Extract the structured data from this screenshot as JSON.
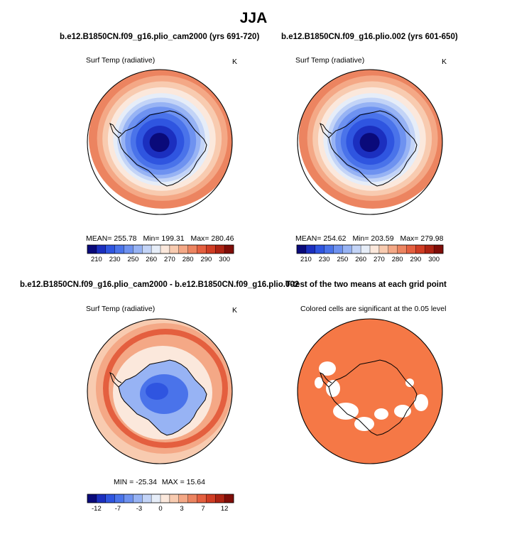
{
  "title": "JJA",
  "panels": [
    {
      "title": "b.e12.B1850CN.f09_g16.plio_cam2000 (yrs 691-720)",
      "variable": "Surf Temp (radiative)",
      "units": "K",
      "stats": {
        "mean_label": "MEAN=",
        "mean": "255.78",
        "min_label": "Min=",
        "min": "199.31",
        "max_label": "Max=",
        "max": "280.46"
      }
    },
    {
      "title": "b.e12.B1850CN.f09_g16.plio.002 (yrs 601-650)",
      "variable": "Surf Temp (radiative)",
      "units": "K",
      "stats": {
        "mean_label": "MEAN=",
        "mean": "254.62",
        "min_label": "Min=",
        "min": "203.59",
        "max_label": "Max=",
        "max": "279.98"
      }
    },
    {
      "title": "b.e12.B1850CN.f09_g16.plio_cam2000 - b.e12.B1850CN.f09_g16.plio.002",
      "variable": "Surf Temp (radiative)",
      "units": "K",
      "stats": {
        "min_label": "MIN =",
        "min": "-25.34",
        "max_label": "MAX =",
        "max": "15.64"
      }
    },
    {
      "title": "T-test of the two means at each grid point",
      "subtitle": "Colored cells are significant at the 0.05 level"
    }
  ],
  "colorbars": {
    "abs_labels": [
      "210",
      "230",
      "250",
      "260",
      "270",
      "280",
      "290",
      "300"
    ],
    "diff_labels": [
      "-12",
      "-7",
      "-3",
      "0",
      "3",
      "7",
      "12"
    ],
    "colors": [
      "#0a0a7a",
      "#1b2fbf",
      "#2f55e0",
      "#4a73ea",
      "#6e92f0",
      "#97b3f4",
      "#c3d4f7",
      "#e6edf8",
      "#fbe8dc",
      "#f8cbb0",
      "#f4a886",
      "#ec8460",
      "#e45f3f",
      "#d03d24",
      "#ad2313",
      "#7f0d08"
    ],
    "diff_colors": [
      "#0a0a7a",
      "#1b2fbf",
      "#2f55e0",
      "#4a73ea",
      "#6e92f0",
      "#97b3f4",
      "#c3d4f7",
      "#e6edf8",
      "#fbe8dc",
      "#f8cbb0",
      "#f4a886",
      "#ec8460",
      "#e45f3f",
      "#d03d24",
      "#ad2313",
      "#7f0d08"
    ],
    "significance_color": "#f57846"
  },
  "chart_data": [
    {
      "type": "heatmap",
      "title": "b.e12.B1850CN.f09_g16.plio_cam2000 (yrs 691-720)",
      "variable": "Surf Temp (radiative)",
      "units": "K",
      "mean": 255.78,
      "min": 199.31,
      "max": 280.46,
      "levels": [
        210,
        230,
        250,
        260,
        270,
        280,
        290,
        300
      ]
    },
    {
      "type": "heatmap",
      "title": "b.e12.B1850CN.f09_g16.plio.002 (yrs 601-650)",
      "variable": "Surf Temp (radiative)",
      "units": "K",
      "mean": 254.62,
      "min": 203.59,
      "max": 279.98,
      "levels": [
        210,
        230,
        250,
        260,
        270,
        280,
        290,
        300
      ]
    },
    {
      "type": "heatmap",
      "title": "b.e12.B1850CN.f09_g16.plio_cam2000 - b.e12.B1850CN.f09_g16.plio.002",
      "variable": "Surf Temp (radiative)",
      "units": "K",
      "min": -25.34,
      "max": 15.64,
      "levels": [
        -12,
        -7,
        -3,
        0,
        3,
        7,
        12
      ]
    },
    {
      "type": "heatmap",
      "title": "T-test of the two means at each grid point",
      "subtitle": "Colored cells are significant at the 0.05 level"
    }
  ]
}
